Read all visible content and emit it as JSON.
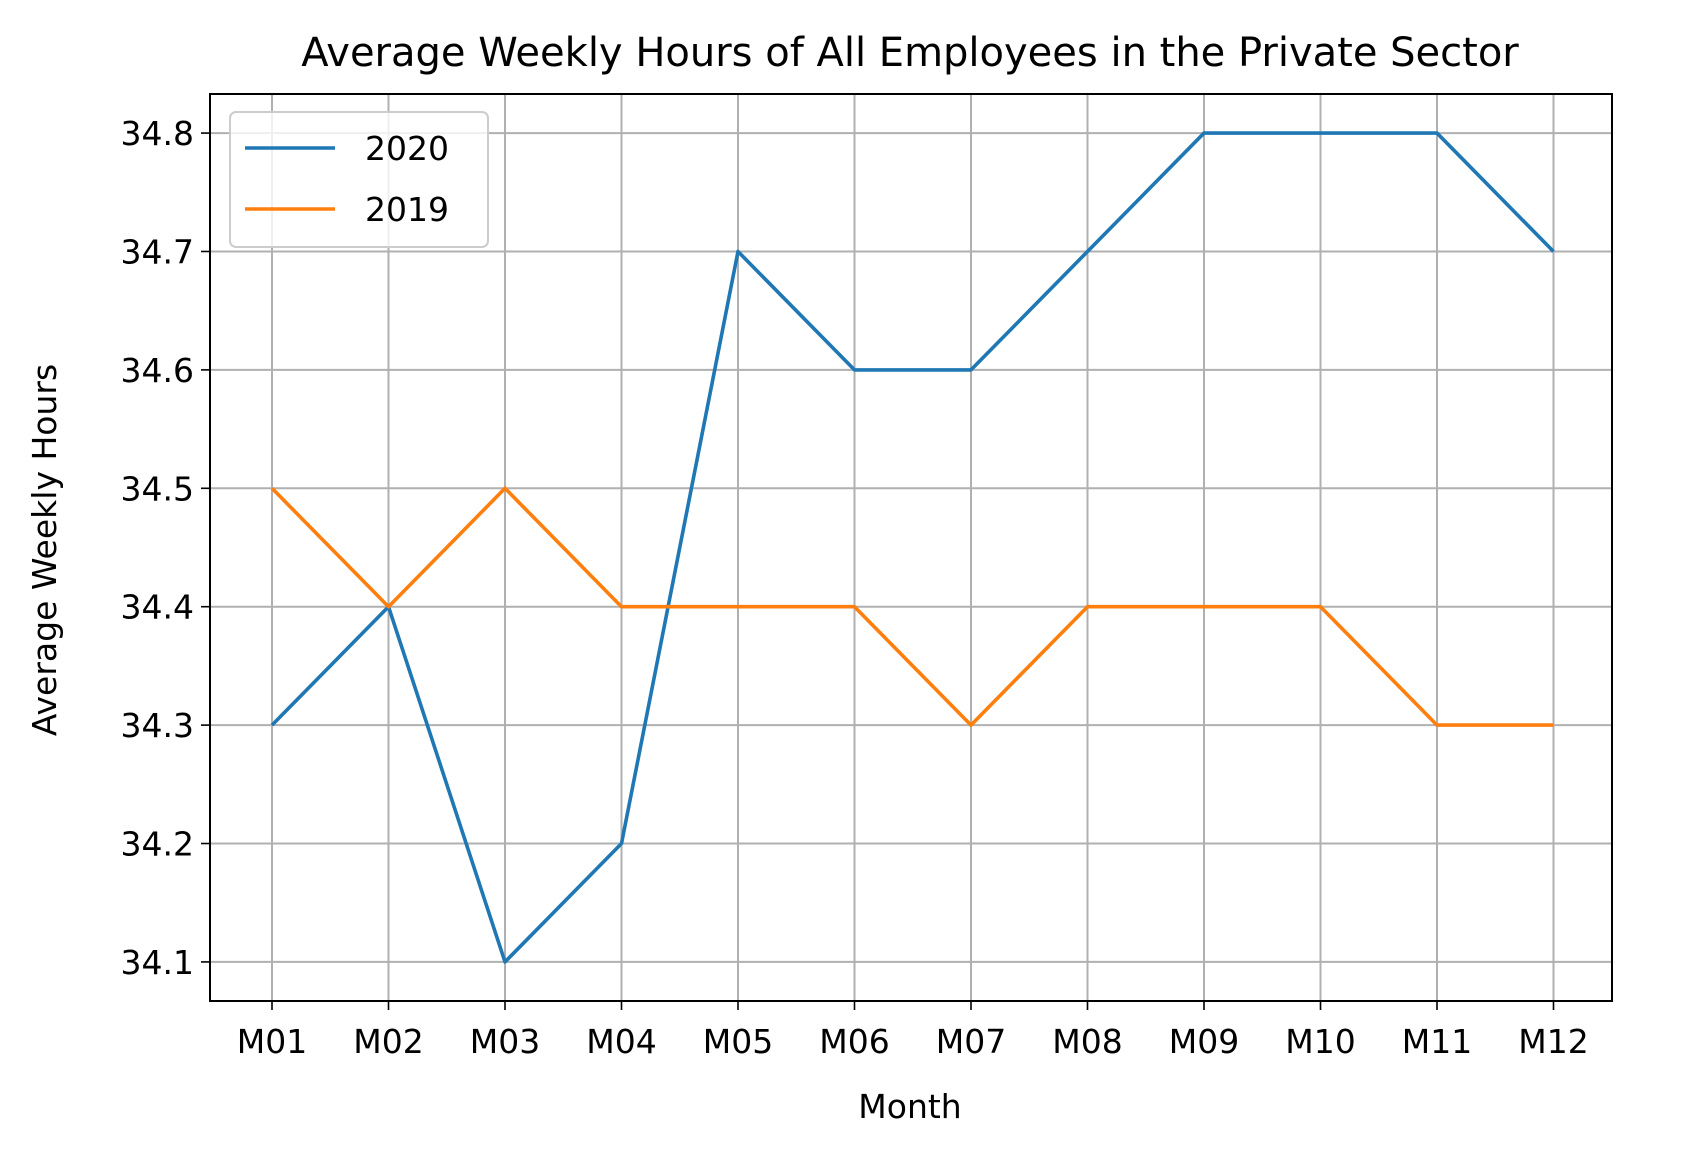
{
  "chart_data": {
    "type": "line",
    "title": "Average Weekly Hours of All Employees in the Private Sector",
    "xlabel": "Month",
    "ylabel": "Average Weekly Hours",
    "categories": [
      "M01",
      "M02",
      "M03",
      "M04",
      "M05",
      "M06",
      "M07",
      "M08",
      "M09",
      "M10",
      "M11",
      "M12"
    ],
    "yticks": [
      "34.1",
      "34.2",
      "34.3",
      "34.4",
      "34.5",
      "34.6",
      "34.7",
      "34.8"
    ],
    "ylim": [
      34.067,
      34.833
    ],
    "grid": true,
    "legend_position": "top-left",
    "series": [
      {
        "name": "2020",
        "color": "#1f77b4",
        "values": [
          34.3,
          34.4,
          34.1,
          34.2,
          34.7,
          34.6,
          34.6,
          34.7,
          34.8,
          34.8,
          34.8,
          34.7
        ]
      },
      {
        "name": "2019",
        "color": "#ff7f0e",
        "values": [
          34.5,
          34.4,
          34.5,
          34.4,
          34.4,
          34.4,
          34.3,
          34.4,
          34.4,
          34.4,
          34.3,
          34.3
        ]
      }
    ]
  }
}
